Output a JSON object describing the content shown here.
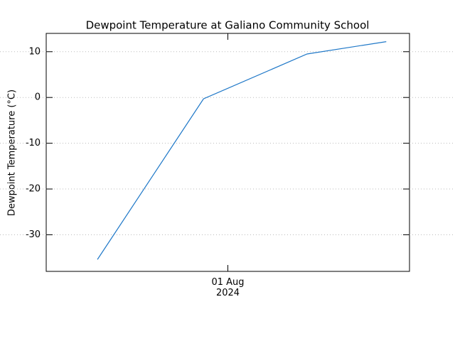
{
  "chart_data": {
    "type": "line",
    "title": "Dewpoint Temperature at Galiano Community School",
    "ylabel": "Dewpoint Temperature (°C)",
    "x": [
      0.641,
      0.933,
      1.218,
      1.436
    ],
    "series": [
      {
        "name": "Dewpoint Temperature",
        "color": "#1f78c8",
        "values": [
          -35.4,
          -0.3,
          9.5,
          12.2
        ]
      }
    ],
    "xlim": [
      0.5,
      1.5
    ],
    "xticks": [
      {
        "value": 1,
        "label": "01 Aug\n2024"
      }
    ],
    "ylim": [
      -38,
      14
    ],
    "yticks": [
      -30,
      -20,
      -10,
      0,
      10
    ],
    "grid": true
  }
}
